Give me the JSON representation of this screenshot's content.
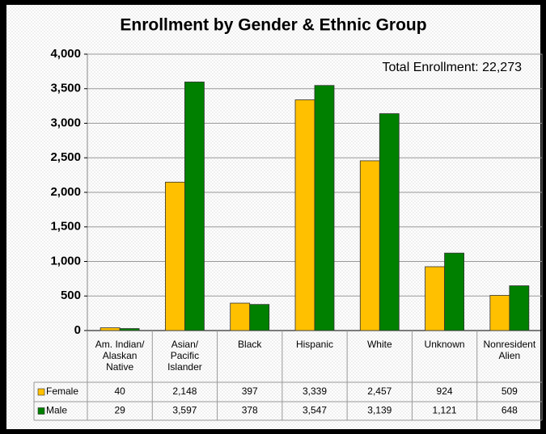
{
  "chart_data": {
    "type": "bar",
    "title": "Enrollment by Gender & Ethnic Group",
    "annotation": "Total Enrollment: 22,273",
    "categories": [
      "Am. Indian/\nAlaskan\nNative",
      "Asian/\nPacific\nIslander",
      "Black",
      "Hispanic",
      "White",
      "Unknown",
      "Nonresident\nAlien"
    ],
    "series": [
      {
        "name": "Female",
        "color": "#ffc000",
        "values": [
          40,
          2148,
          397,
          3339,
          2457,
          924,
          509
        ],
        "value_labels": [
          "40",
          "2,148",
          "397",
          "3,339",
          "2,457",
          "924",
          "509"
        ]
      },
      {
        "name": "Male",
        "color": "#008000",
        "values": [
          29,
          3597,
          378,
          3547,
          3139,
          1121,
          648
        ],
        "value_labels": [
          "29",
          "3,597",
          "378",
          "3,547",
          "3,139",
          "1,121",
          "648"
        ]
      }
    ],
    "ylim": [
      0,
      4000
    ],
    "yticks": [
      0,
      500,
      {
        "value": 1000,
        "label": "1,000"
      },
      {
        "value": 1500,
        "label": "1,500"
      },
      {
        "value": 2000,
        "label": "2,000"
      },
      {
        "value": 2500,
        "label": "2,500"
      },
      {
        "value": 3000,
        "label": "3,000"
      },
      {
        "value": 3500,
        "label": "3,500"
      },
      {
        "value": 4000,
        "label": "4,000"
      }
    ],
    "grid": true
  }
}
